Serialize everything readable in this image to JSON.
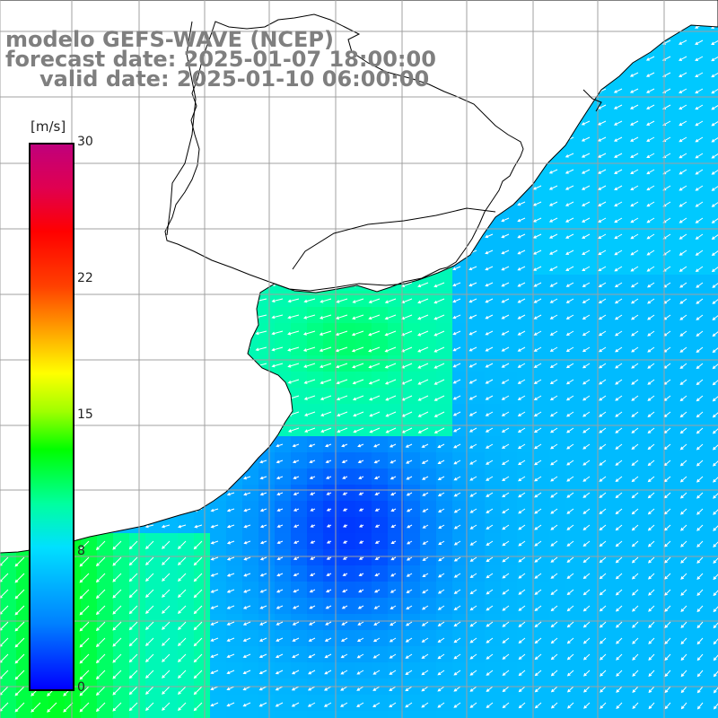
{
  "title": {
    "model": "modelo GEFS-WAVE (NCEP)",
    "forecast_date": "forecast date: 2025-01-07 18:00:00",
    "valid_date": "valid date: 2025-01-10 06:00:00"
  },
  "legend": {
    "unit": "[m/s]",
    "ticks": [
      "30",
      "22",
      "15",
      "8",
      "0"
    ],
    "tick_values": [
      30,
      22,
      15,
      8,
      0
    ],
    "range": [
      0,
      30
    ]
  },
  "colors": {
    "land": "#ffffff",
    "coast": "#000000",
    "grid": "#a0a0a0",
    "arrow": "#ffffff"
  },
  "icons": [
    "wind-arrow-icon"
  ]
}
